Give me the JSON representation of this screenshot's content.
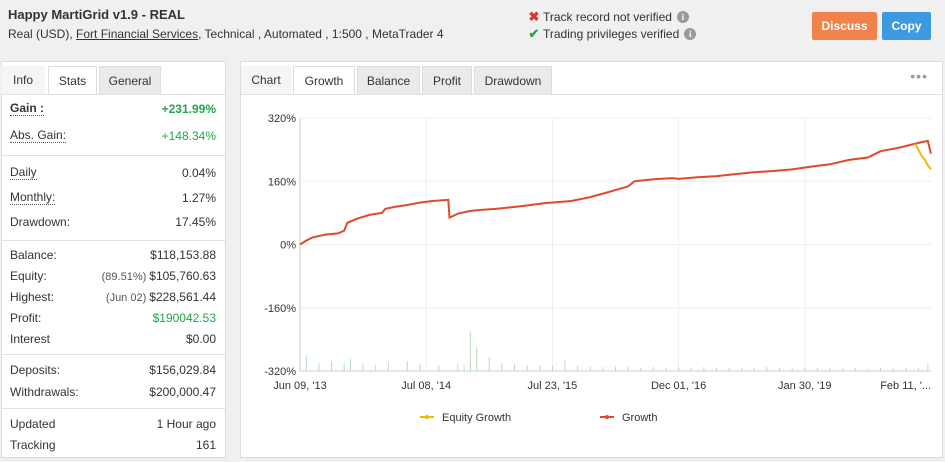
{
  "header": {
    "title": "Happy MartiGrid v1.9 - REAL",
    "sub_prefix": "Real (USD),",
    "broker": "Fort Financial Services",
    "sub_suffix": ", Technical , Automated , 1:500 , MetaTrader 4",
    "track_record": "Track record not verified",
    "trading_privileges": "Trading privileges verified",
    "discuss_label": "Discuss",
    "copy_label": "Copy"
  },
  "colors": {
    "discuss": "#f0824a",
    "copy": "#3d99e0",
    "growth_line": "#e04a2a",
    "equity_line": "#f5b800",
    "volume": "#b9dcbe",
    "positive": "#22a54a"
  },
  "left_tabs": [
    "Info",
    "Stats",
    "General"
  ],
  "stats": {
    "gain_label": "Gain :",
    "gain_value": "+231.99%",
    "abs_gain_label": "Abs. Gain:",
    "abs_gain_value": "+148.34%",
    "daily_label": "Daily",
    "daily_value": "0.04%",
    "monthly_label": "Monthly:",
    "monthly_value": "1.27%",
    "drawdown_label": "Drawdown:",
    "drawdown_value": "17.45%",
    "balance_label": "Balance:",
    "balance_value": "$118,153.88",
    "equity_label": "Equity:",
    "equity_pre": "(89.51%)",
    "equity_value": "$105,760.63",
    "highest_label": "Highest:",
    "highest_pre": "(Jun 02)",
    "highest_value": "$228,561.44",
    "profit_label": "Profit:",
    "profit_value": "$190042.53",
    "interest_label": "Interest",
    "interest_value": "$0.00",
    "deposits_label": "Deposits:",
    "deposits_value": "$156,029.84",
    "withdrawals_label": "Withdrawals:",
    "withdrawals_value": "$200,000.47",
    "updated_label": "Updated",
    "updated_value": "1 Hour ago",
    "tracking_label": "Tracking",
    "tracking_value": "161"
  },
  "chart_tabs": [
    "Chart",
    "Growth",
    "Balance",
    "Profit",
    "Drawdown"
  ],
  "chart_data": {
    "type": "line",
    "yticks": [
      "320%",
      "160%",
      "0%",
      "-160%",
      "-320%"
    ],
    "ylim": [
      -320,
      320
    ],
    "xticks": [
      "Jun 09, '13",
      "Jul 08, '14",
      "Jul 23, '15",
      "Dec 01, '16",
      "Jan 30, '19",
      "Feb 11, '..."
    ],
    "x_fraction_ticks": [
      0,
      0.2,
      0.4,
      0.6,
      0.8,
      1.0
    ],
    "grid": true,
    "legend_position": "bottom",
    "series": [
      {
        "name": "Growth",
        "color": "#e04a2a",
        "points": [
          [
            0,
            0
          ],
          [
            0.01,
            10
          ],
          [
            0.02,
            18
          ],
          [
            0.04,
            25
          ],
          [
            0.06,
            28
          ],
          [
            0.07,
            35
          ],
          [
            0.075,
            55
          ],
          [
            0.09,
            65
          ],
          [
            0.11,
            75
          ],
          [
            0.13,
            80
          ],
          [
            0.135,
            90
          ],
          [
            0.15,
            95
          ],
          [
            0.17,
            100
          ],
          [
            0.19,
            106
          ],
          [
            0.21,
            110
          ],
          [
            0.235,
            113
          ],
          [
            0.237,
            68
          ],
          [
            0.25,
            78
          ],
          [
            0.27,
            85
          ],
          [
            0.29,
            88
          ],
          [
            0.31,
            90
          ],
          [
            0.35,
            97
          ],
          [
            0.39,
            105
          ],
          [
            0.43,
            110
          ],
          [
            0.46,
            120
          ],
          [
            0.49,
            133
          ],
          [
            0.52,
            147
          ],
          [
            0.53,
            160
          ],
          [
            0.56,
            165
          ],
          [
            0.59,
            168
          ],
          [
            0.6,
            166
          ],
          [
            0.63,
            170
          ],
          [
            0.66,
            173
          ],
          [
            0.69,
            178
          ],
          [
            0.72,
            183
          ],
          [
            0.75,
            186
          ],
          [
            0.78,
            190
          ],
          [
            0.81,
            197
          ],
          [
            0.84,
            203
          ],
          [
            0.87,
            214
          ],
          [
            0.9,
            220
          ],
          [
            0.92,
            236
          ],
          [
            0.95,
            245
          ],
          [
            0.98,
            257
          ],
          [
            0.995,
            262
          ],
          [
            1.0,
            230
          ]
        ]
      },
      {
        "name": "Equity Growth",
        "color": "#f5b800",
        "points": [
          [
            0.975,
            255
          ],
          [
            0.985,
            225
          ],
          [
            0.99,
            215
          ],
          [
            0.995,
            200
          ],
          [
            1.0,
            190
          ]
        ]
      }
    ],
    "volume": [
      [
        0.01,
        40
      ],
      [
        0.03,
        20
      ],
      [
        0.05,
        25
      ],
      [
        0.07,
        20
      ],
      [
        0.08,
        30
      ],
      [
        0.1,
        18
      ],
      [
        0.12,
        15
      ],
      [
        0.14,
        22
      ],
      [
        0.17,
        25
      ],
      [
        0.19,
        18
      ],
      [
        0.22,
        14
      ],
      [
        0.25,
        18
      ],
      [
        0.26,
        15
      ],
      [
        0.27,
        100
      ],
      [
        0.28,
        60
      ],
      [
        0.3,
        35
      ],
      [
        0.32,
        20
      ],
      [
        0.34,
        18
      ],
      [
        0.36,
        15
      ],
      [
        0.38,
        14
      ],
      [
        0.4,
        12
      ],
      [
        0.42,
        28
      ],
      [
        0.44,
        14
      ],
      [
        0.46,
        12
      ],
      [
        0.48,
        10
      ],
      [
        0.5,
        12
      ],
      [
        0.52,
        10
      ],
      [
        0.54,
        8
      ],
      [
        0.56,
        10
      ],
      [
        0.58,
        8
      ],
      [
        0.6,
        10
      ],
      [
        0.62,
        9
      ],
      [
        0.64,
        10
      ],
      [
        0.66,
        8
      ],
      [
        0.68,
        9
      ],
      [
        0.7,
        8
      ],
      [
        0.72,
        9
      ],
      [
        0.74,
        10
      ],
      [
        0.76,
        8
      ],
      [
        0.78,
        7
      ],
      [
        0.8,
        10
      ],
      [
        0.82,
        9
      ],
      [
        0.84,
        7
      ],
      [
        0.86,
        8
      ],
      [
        0.88,
        9
      ],
      [
        0.9,
        6
      ],
      [
        0.92,
        8
      ],
      [
        0.94,
        7
      ],
      [
        0.96,
        9
      ],
      [
        0.98,
        8
      ],
      [
        0.995,
        20
      ]
    ]
  }
}
